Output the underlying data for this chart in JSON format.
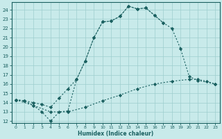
{
  "xlabel": "Humidex (Indice chaleur)",
  "bg_color": "#c8eaea",
  "grid_color": "#9ecece",
  "line_color": "#1a6060",
  "xlim": [
    -0.5,
    23.5
  ],
  "ylim": [
    11.8,
    24.8
  ],
  "xticks": [
    0,
    1,
    2,
    3,
    4,
    5,
    6,
    7,
    8,
    9,
    10,
    11,
    12,
    13,
    14,
    15,
    16,
    17,
    18,
    19,
    20,
    21,
    22,
    23
  ],
  "yticks": [
    12,
    13,
    14,
    15,
    16,
    17,
    18,
    19,
    20,
    21,
    22,
    23,
    24
  ],
  "curve_top_x": [
    0,
    1,
    2,
    3,
    4,
    5,
    6,
    7,
    8,
    9,
    10,
    11,
    12,
    13,
    14,
    15,
    16,
    17
  ],
  "curve_top_y": [
    14.3,
    14.2,
    14.0,
    13.8,
    13.5,
    14.5,
    15.5,
    16.5,
    18.5,
    21.0,
    22.7,
    22.8,
    23.3,
    24.4,
    24.1,
    24.2,
    23.4,
    22.6
  ],
  "curve_mid_x": [
    0,
    1,
    2,
    3,
    4,
    5,
    6,
    7,
    8,
    9,
    10,
    11,
    12,
    13,
    14,
    15,
    16,
    17,
    18,
    19,
    20,
    21,
    23
  ],
  "curve_mid_y": [
    14.3,
    14.2,
    13.7,
    13.0,
    12.0,
    13.0,
    13.1,
    16.5,
    18.5,
    21.0,
    22.7,
    22.8,
    23.3,
    24.4,
    24.1,
    24.2,
    23.4,
    22.6,
    22.0,
    19.8,
    16.8,
    16.4,
    16.0
  ],
  "curve_bot_x": [
    0,
    2,
    4,
    6,
    8,
    10,
    12,
    14,
    16,
    18,
    20,
    21,
    22,
    23
  ],
  "curve_bot_y": [
    14.3,
    13.7,
    13.0,
    13.0,
    13.5,
    14.2,
    14.8,
    15.5,
    16.0,
    16.3,
    16.5,
    16.5,
    16.3,
    16.0
  ]
}
